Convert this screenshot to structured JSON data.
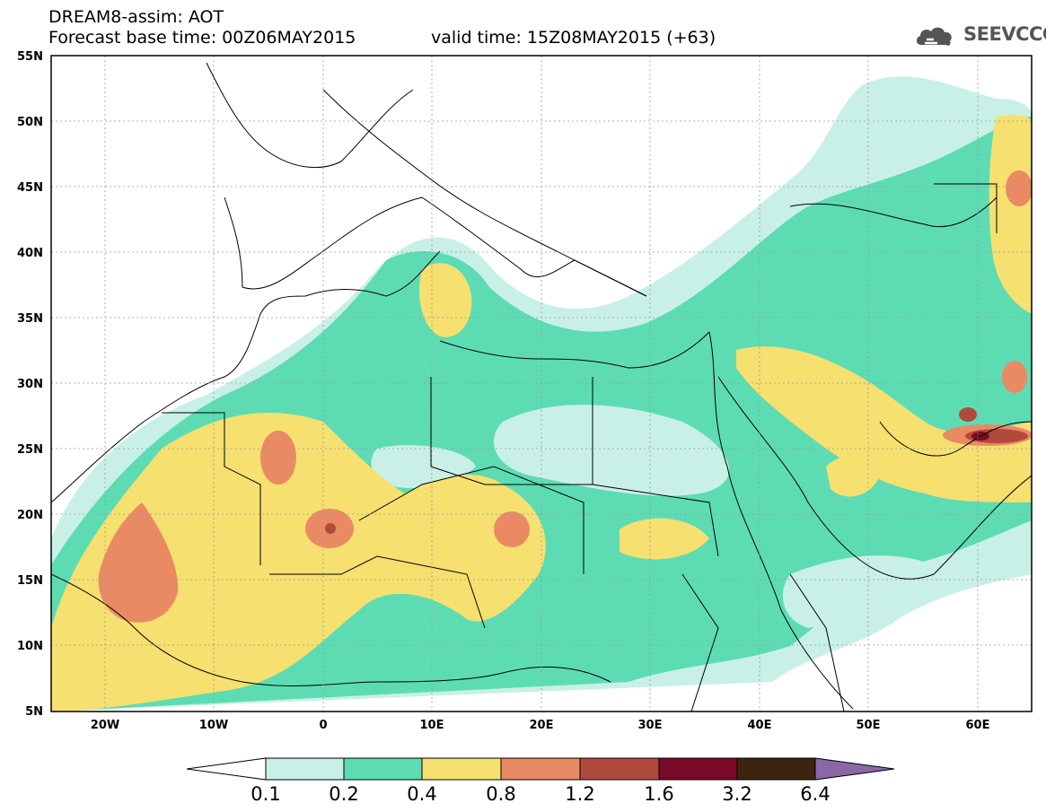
{
  "header": {
    "title": "DREAM8-assim: AOT",
    "base_time": "Forecast base time: 00Z06MAY2015",
    "valid_time": "valid time: 15Z08MAY2015 (+63)",
    "logo_text": "SEEVCCC"
  },
  "axes": {
    "lat_labels": [
      "55N",
      "50N",
      "45N",
      "40N",
      "35N",
      "30N",
      "25N",
      "20N",
      "15N",
      "10N",
      "5N"
    ],
    "lon_labels": [
      "20W",
      "10W",
      "0",
      "10E",
      "20E",
      "30E",
      "40E",
      "50E",
      "60E"
    ]
  },
  "colorbar": {
    "labels": [
      "0.1",
      "0.2",
      "0.4",
      "0.8",
      "1.2",
      "1.6",
      "3.2",
      "6.4"
    ],
    "colors": [
      "#ffffff",
      "#c8f0e6",
      "#5ddcb4",
      "#f5e070",
      "#ea8a64",
      "#b04a3c",
      "#7a0a2a",
      "#3c2410",
      "#8a68a8"
    ]
  },
  "colors": {
    "level_01": "#c8f0e6",
    "level_02": "#5ddcb4",
    "level_04": "#f5e070",
    "level_08": "#ea8a64",
    "level_12": "#b04a3c",
    "level_16": "#7a0a2a"
  }
}
